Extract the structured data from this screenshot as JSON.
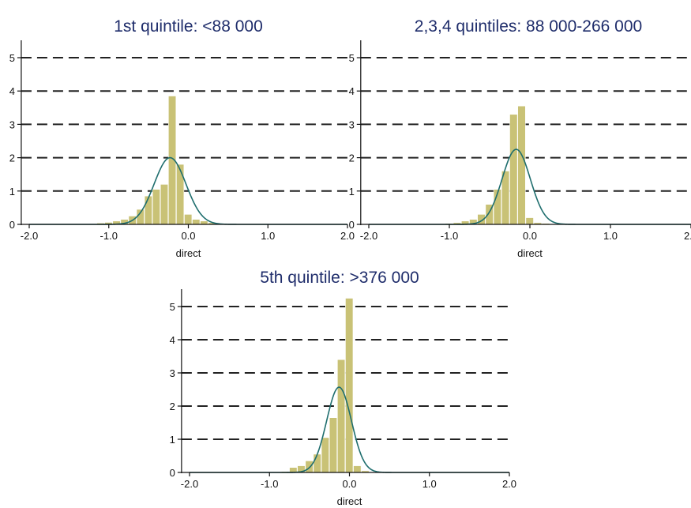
{
  "chart_data": [
    {
      "type": "histogram",
      "title": "1st quintile: <88 000",
      "xlabel": "direct",
      "ylabel": "",
      "xlim": [
        -2.0,
        2.0
      ],
      "ylim": [
        0,
        5
      ],
      "xticks": [
        "-2.0",
        "-1.0",
        "0.0",
        "1.0",
        "2.0"
      ],
      "yticks": [
        "0",
        "1",
        "2",
        "3",
        "4",
        "5"
      ],
      "grid": "horizontal dashed",
      "bin_width": 0.1,
      "bins": [
        {
          "x": -1.2,
          "y": 0.02
        },
        {
          "x": -1.1,
          "y": 0.04
        },
        {
          "x": -1.0,
          "y": 0.06
        },
        {
          "x": -0.9,
          "y": 0.1
        },
        {
          "x": -0.8,
          "y": 0.15
        },
        {
          "x": -0.7,
          "y": 0.25
        },
        {
          "x": -0.6,
          "y": 0.45
        },
        {
          "x": -0.5,
          "y": 0.85
        },
        {
          "x": -0.4,
          "y": 1.05
        },
        {
          "x": -0.3,
          "y": 1.2
        },
        {
          "x": -0.2,
          "y": 3.85
        },
        {
          "x": -0.1,
          "y": 1.8
        },
        {
          "x": 0.0,
          "y": 0.3
        },
        {
          "x": 0.1,
          "y": 0.15
        },
        {
          "x": 0.2,
          "y": 0.1
        },
        {
          "x": 0.3,
          "y": 0.05
        },
        {
          "x": 0.4,
          "y": 0.03
        }
      ],
      "density": {
        "mean": -0.23,
        "sd": 0.2,
        "peak": 2.0
      },
      "bar_color": "#c9c276",
      "curve_color": "#1f6e6e"
    },
    {
      "type": "histogram",
      "title": "2,3,4 quintiles: 88 000-266 000",
      "xlabel": "direct",
      "ylabel": "",
      "xlim": [
        -2.0,
        2.0
      ],
      "ylim": [
        0,
        5
      ],
      "xticks": [
        "-2.0",
        "-1.0",
        "0.0",
        "1.0",
        "2.0"
      ],
      "yticks": [
        "0",
        "1",
        "2",
        "3",
        "4",
        "5"
      ],
      "grid": "horizontal dashed",
      "bin_width": 0.1,
      "bins": [
        {
          "x": -1.0,
          "y": 0.03
        },
        {
          "x": -0.9,
          "y": 0.05
        },
        {
          "x": -0.8,
          "y": 0.1
        },
        {
          "x": -0.7,
          "y": 0.15
        },
        {
          "x": -0.6,
          "y": 0.3
        },
        {
          "x": -0.5,
          "y": 0.6
        },
        {
          "x": -0.4,
          "y": 1.05
        },
        {
          "x": -0.3,
          "y": 1.6
        },
        {
          "x": -0.2,
          "y": 3.3
        },
        {
          "x": -0.1,
          "y": 3.55
        },
        {
          "x": 0.0,
          "y": 0.2
        },
        {
          "x": 0.1,
          "y": 0.05
        },
        {
          "x": 0.2,
          "y": 0.03
        }
      ],
      "density": {
        "mean": -0.17,
        "sd": 0.175,
        "peak": 2.25
      },
      "bar_color": "#c9c276",
      "curve_color": "#1f6e6e"
    },
    {
      "type": "histogram",
      "title": "5th quintile: >376 000",
      "xlabel": "direct",
      "ylabel": "",
      "xlim": [
        -2.0,
        2.0
      ],
      "ylim": [
        0,
        5
      ],
      "xticks": [
        "-2.0",
        "-1.0",
        "0.0",
        "1.0",
        "2.0"
      ],
      "yticks": [
        "0",
        "1",
        "2",
        "3",
        "4",
        "5"
      ],
      "grid": "horizontal dashed",
      "bin_width": 0.1,
      "bins": [
        {
          "x": -0.8,
          "y": 0.03
        },
        {
          "x": -0.7,
          "y": 0.15
        },
        {
          "x": -0.6,
          "y": 0.2
        },
        {
          "x": -0.5,
          "y": 0.35
        },
        {
          "x": -0.4,
          "y": 0.55
        },
        {
          "x": -0.3,
          "y": 1.05
        },
        {
          "x": -0.2,
          "y": 1.65
        },
        {
          "x": -0.1,
          "y": 3.4
        },
        {
          "x": 0.0,
          "y": 5.25
        },
        {
          "x": 0.1,
          "y": 0.2
        },
        {
          "x": 0.2,
          "y": 0.05
        }
      ],
      "density": {
        "mean": -0.13,
        "sd": 0.155,
        "peak": 2.57
      },
      "bar_color": "#c9c276",
      "curve_color": "#1f6e6e"
    }
  ]
}
